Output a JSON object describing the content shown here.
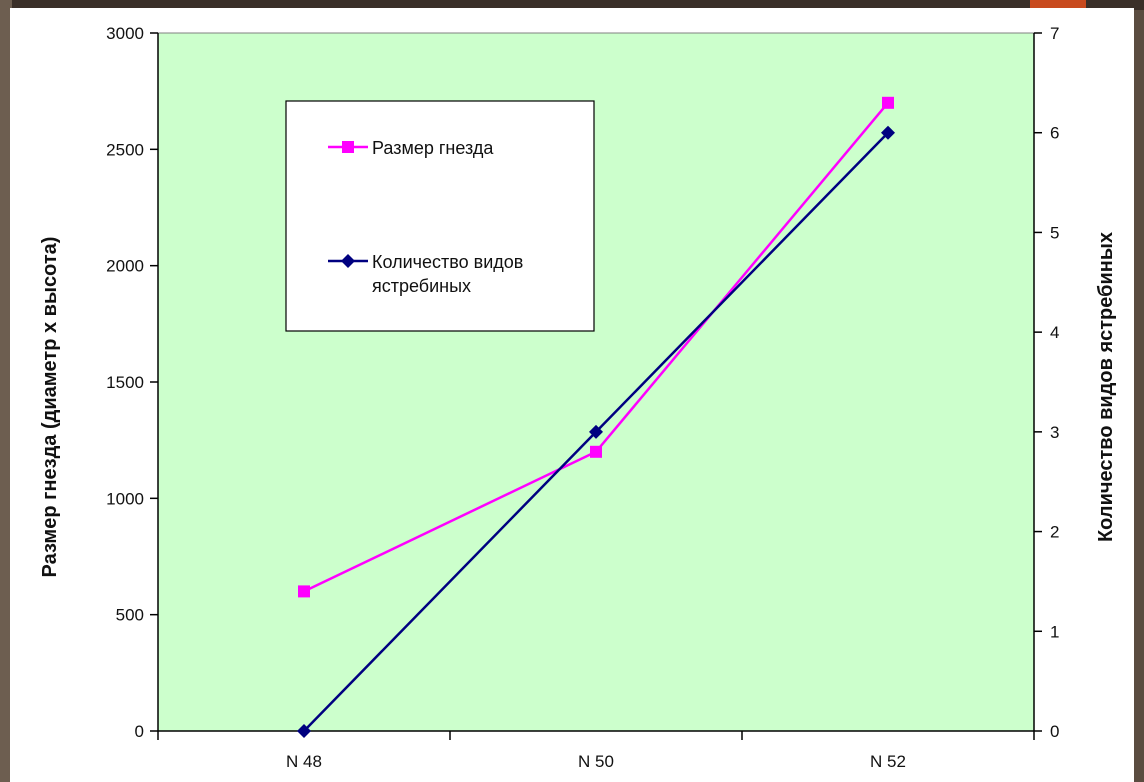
{
  "chart_data": {
    "type": "line",
    "categories": [
      "N 48",
      "N 50",
      "N 52"
    ],
    "series": [
      {
        "name": "Размер гнезда",
        "axis": "left",
        "values": [
          600,
          1200,
          2700
        ],
        "color": "#ff00ff",
        "marker": "square"
      },
      {
        "name_lines": [
          "Количество видов",
          "ястребиных"
        ],
        "axis": "right",
        "values": [
          0,
          3,
          6
        ],
        "color": "#000080",
        "marker": "diamond"
      }
    ],
    "y_left": {
      "label": "Размер гнезда (диаметр х высота)",
      "range": [
        0,
        3000
      ],
      "ticks": [
        0,
        500,
        1000,
        1500,
        2000,
        2500,
        3000
      ]
    },
    "y_right": {
      "label": "Количество видов ястребиных",
      "range": [
        0,
        7
      ],
      "ticks": [
        0,
        1,
        2,
        3,
        4,
        5,
        6,
        7
      ]
    },
    "legend_position": "top-left",
    "grid": false,
    "plot_background": "#ccffcc"
  }
}
